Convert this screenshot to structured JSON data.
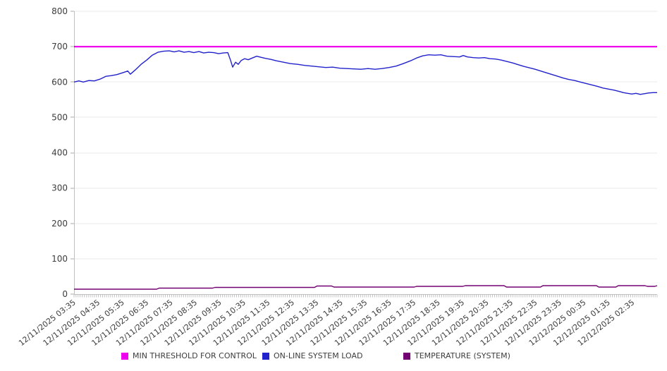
{
  "chart_data": {
    "type": "line",
    "grid": true,
    "legend_position": "bottom",
    "y_axis": {
      "range": [
        0,
        800
      ],
      "ticks": [
        0,
        100,
        200,
        300,
        400,
        500,
        600,
        700,
        800
      ]
    },
    "x_axis": {
      "range_hours": [
        0,
        24
      ],
      "minor_ticks": 288,
      "labels": [
        "12/11/2025 03:35",
        "12/11/2025 04:35",
        "12/11/2025 05:35",
        "12/11/2025 06:35",
        "12/11/2025 07:35",
        "12/11/2025 08:35",
        "12/11/2025 09:35",
        "12/11/2025 10:35",
        "12/11/2025 11:35",
        "12/11/2025 12:35",
        "12/11/2025 13:35",
        "12/11/2025 14:35",
        "12/11/2025 15:35",
        "12/11/2025 16:35",
        "12/11/2025 17:35",
        "12/11/2025 18:35",
        "12/11/2025 19:35",
        "12/11/2025 20:35",
        "12/11/2025 21:35",
        "12/11/2025 22:35",
        "12/11/2025 23:35",
        "12/12/2025 00:35",
        "12/12/2025 01:35",
        "12/12/2025 02:35"
      ]
    },
    "series": [
      {
        "name": "MIN THRESHOLD FOR CONTROL",
        "color": "#ee00ee",
        "stroke_width": 2.2,
        "points": [
          [
            0,
            700
          ],
          [
            24,
            700
          ]
        ]
      },
      {
        "name": "ON-LINE SYSTEM LOAD",
        "color": "#2222cc",
        "stroke_width": 1.4,
        "points": [
          [
            0,
            600
          ],
          [
            0.2,
            603
          ],
          [
            0.38,
            600
          ],
          [
            0.61,
            604
          ],
          [
            0.84,
            603
          ],
          [
            1.07,
            608
          ],
          [
            1.31,
            616
          ],
          [
            1.54,
            618
          ],
          [
            1.77,
            621
          ],
          [
            2,
            626
          ],
          [
            2.21,
            631
          ],
          [
            2.32,
            622
          ],
          [
            2.52,
            634
          ],
          [
            2.76,
            650
          ],
          [
            2.99,
            662
          ],
          [
            3.22,
            676
          ],
          [
            3.45,
            684
          ],
          [
            3.69,
            687
          ],
          [
            3.92,
            688
          ],
          [
            4.12,
            685
          ],
          [
            4.32,
            688
          ],
          [
            4.53,
            684
          ],
          [
            4.73,
            686
          ],
          [
            4.93,
            683
          ],
          [
            5.14,
            686
          ],
          [
            5.34,
            682
          ],
          [
            5.54,
            684
          ],
          [
            5.75,
            683
          ],
          [
            5.95,
            680
          ],
          [
            6.15,
            682
          ],
          [
            6.33,
            683
          ],
          [
            6.44,
            662
          ],
          [
            6.53,
            642
          ],
          [
            6.65,
            656
          ],
          [
            6.76,
            650
          ],
          [
            6.88,
            661
          ],
          [
            7.02,
            666
          ],
          [
            7.17,
            663
          ],
          [
            7.34,
            668
          ],
          [
            7.52,
            673
          ],
          [
            7.69,
            670
          ],
          [
            7.87,
            667
          ],
          [
            8.1,
            664
          ],
          [
            8.33,
            660
          ],
          [
            8.62,
            656
          ],
          [
            8.91,
            652
          ],
          [
            9.2,
            650
          ],
          [
            9.49,
            647
          ],
          [
            9.78,
            645
          ],
          [
            10.07,
            643
          ],
          [
            10.36,
            641
          ],
          [
            10.65,
            642
          ],
          [
            10.94,
            639
          ],
          [
            11.23,
            638
          ],
          [
            11.52,
            637
          ],
          [
            11.81,
            636
          ],
          [
            12.1,
            638
          ],
          [
            12.39,
            636
          ],
          [
            12.68,
            638
          ],
          [
            12.97,
            641
          ],
          [
            13.26,
            645
          ],
          [
            13.55,
            652
          ],
          [
            13.85,
            660
          ],
          [
            14.1,
            668
          ],
          [
            14.35,
            674
          ],
          [
            14.6,
            677
          ],
          [
            14.85,
            676
          ],
          [
            15.1,
            677
          ],
          [
            15.35,
            673
          ],
          [
            15.6,
            672
          ],
          [
            15.87,
            671
          ],
          [
            16.02,
            675
          ],
          [
            16.19,
            671
          ],
          [
            16.43,
            669
          ],
          [
            16.66,
            668
          ],
          [
            16.89,
            669
          ],
          [
            17.12,
            666
          ],
          [
            17.35,
            665
          ],
          [
            17.59,
            662
          ],
          [
            17.82,
            658
          ],
          [
            18.05,
            654
          ],
          [
            18.28,
            649
          ],
          [
            18.52,
            644
          ],
          [
            18.75,
            640
          ],
          [
            18.98,
            636
          ],
          [
            19.21,
            631
          ],
          [
            19.44,
            626
          ],
          [
            19.68,
            621
          ],
          [
            19.91,
            616
          ],
          [
            20.14,
            611
          ],
          [
            20.37,
            607
          ],
          [
            20.61,
            604
          ],
          [
            20.84,
            600
          ],
          [
            21.07,
            596
          ],
          [
            21.3,
            592
          ],
          [
            21.53,
            588
          ],
          [
            21.77,
            583
          ],
          [
            22,
            580
          ],
          [
            22.23,
            577
          ],
          [
            22.46,
            573
          ],
          [
            22.61,
            570
          ],
          [
            22.78,
            568
          ],
          [
            22.96,
            566
          ],
          [
            23.13,
            568
          ],
          [
            23.31,
            565
          ],
          [
            23.48,
            567
          ],
          [
            23.65,
            569
          ],
          [
            23.83,
            570
          ],
          [
            24,
            570
          ]
        ]
      },
      {
        "name": "TEMPERATURE (SYSTEM)",
        "color": "#730073",
        "stroke_width": 1.4,
        "points": [
          [
            0,
            14
          ],
          [
            3.4,
            14
          ],
          [
            3.5,
            17
          ],
          [
            5.7,
            17
          ],
          [
            5.8,
            19
          ],
          [
            9.9,
            19
          ],
          [
            10,
            23
          ],
          [
            10.6,
            23
          ],
          [
            10.7,
            20
          ],
          [
            14,
            20
          ],
          [
            14.1,
            22
          ],
          [
            16,
            22
          ],
          [
            16.1,
            24
          ],
          [
            17.7,
            24
          ],
          [
            17.8,
            20
          ],
          [
            19.2,
            20
          ],
          [
            19.3,
            24
          ],
          [
            21.5,
            24
          ],
          [
            21.6,
            20
          ],
          [
            22.3,
            20
          ],
          [
            22.4,
            24
          ],
          [
            23.5,
            24
          ],
          [
            23.6,
            22
          ],
          [
            23.9,
            22
          ],
          [
            24,
            24
          ]
        ]
      }
    ]
  }
}
